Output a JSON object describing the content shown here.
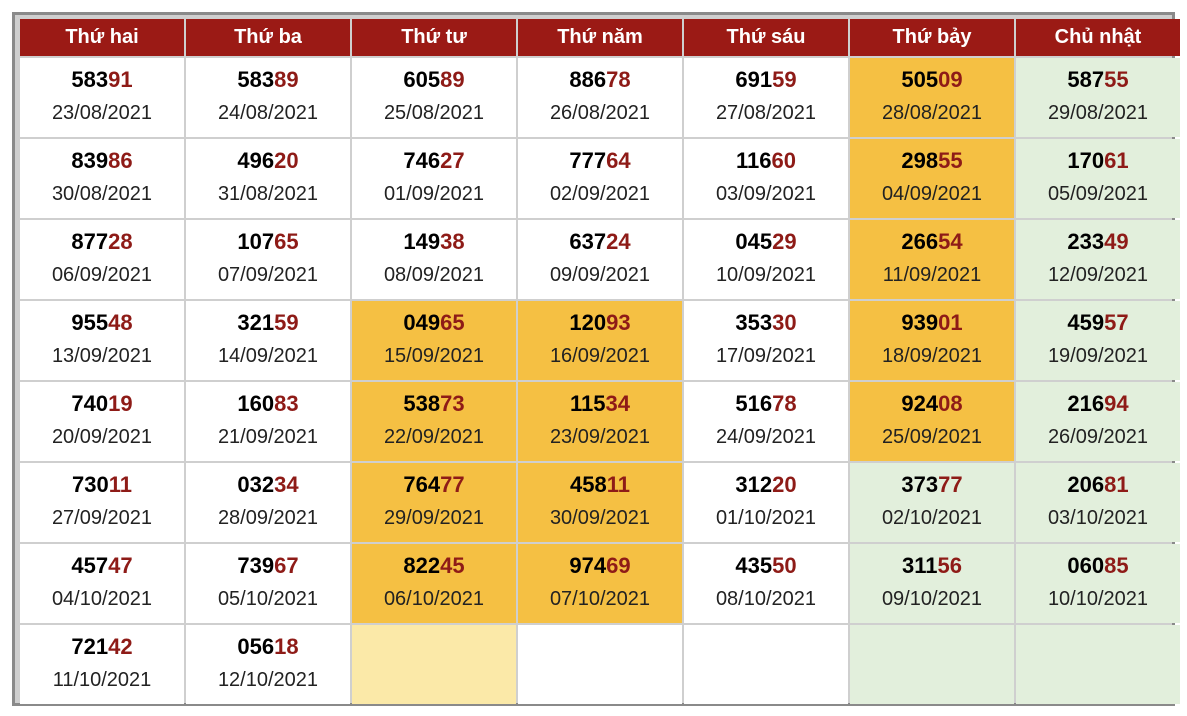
{
  "headers": [
    "Thứ hai",
    "Thứ ba",
    "Thứ tư",
    "Thứ năm",
    "Thứ sáu",
    "Thứ bảy",
    "Chủ nhật"
  ],
  "highlight_colors": {
    "header": "#9b1a15",
    "last_two_digits": "#8e1b17",
    "yellow": "#f5c043",
    "green": "#e2efdc",
    "pale_yellow": "#fbe9a8"
  },
  "rows": [
    [
      {
        "head": "583",
        "tail": "91",
        "date": "23/08/2021",
        "bg": ""
      },
      {
        "head": "583",
        "tail": "89",
        "date": "24/08/2021",
        "bg": ""
      },
      {
        "head": "605",
        "tail": "89",
        "date": "25/08/2021",
        "bg": ""
      },
      {
        "head": "886",
        "tail": "78",
        "date": "26/08/2021",
        "bg": ""
      },
      {
        "head": "691",
        "tail": "59",
        "date": "27/08/2021",
        "bg": ""
      },
      {
        "head": "505",
        "tail": "09",
        "date": "28/08/2021",
        "bg": "yellow"
      },
      {
        "head": "587",
        "tail": "55",
        "date": "29/08/2021",
        "bg": "green"
      }
    ],
    [
      {
        "head": "839",
        "tail": "86",
        "date": "30/08/2021",
        "bg": ""
      },
      {
        "head": "496",
        "tail": "20",
        "date": "31/08/2021",
        "bg": ""
      },
      {
        "head": "746",
        "tail": "27",
        "date": "01/09/2021",
        "bg": ""
      },
      {
        "head": "777",
        "tail": "64",
        "date": "02/09/2021",
        "bg": ""
      },
      {
        "head": "116",
        "tail": "60",
        "date": "03/09/2021",
        "bg": ""
      },
      {
        "head": "298",
        "tail": "55",
        "date": "04/09/2021",
        "bg": "yellow"
      },
      {
        "head": "170",
        "tail": "61",
        "date": "05/09/2021",
        "bg": "green"
      }
    ],
    [
      {
        "head": "877",
        "tail": "28",
        "date": "06/09/2021",
        "bg": ""
      },
      {
        "head": "107",
        "tail": "65",
        "date": "07/09/2021",
        "bg": ""
      },
      {
        "head": "149",
        "tail": "38",
        "date": "08/09/2021",
        "bg": ""
      },
      {
        "head": "637",
        "tail": "24",
        "date": "09/09/2021",
        "bg": ""
      },
      {
        "head": "045",
        "tail": "29",
        "date": "10/09/2021",
        "bg": ""
      },
      {
        "head": "266",
        "tail": "54",
        "date": "11/09/2021",
        "bg": "yellow"
      },
      {
        "head": "233",
        "tail": "49",
        "date": "12/09/2021",
        "bg": "green"
      }
    ],
    [
      {
        "head": "955",
        "tail": "48",
        "date": "13/09/2021",
        "bg": ""
      },
      {
        "head": "321",
        "tail": "59",
        "date": "14/09/2021",
        "bg": ""
      },
      {
        "head": "049",
        "tail": "65",
        "date": "15/09/2021",
        "bg": "yellow"
      },
      {
        "head": "120",
        "tail": "93",
        "date": "16/09/2021",
        "bg": "yellow"
      },
      {
        "head": "353",
        "tail": "30",
        "date": "17/09/2021",
        "bg": ""
      },
      {
        "head": "939",
        "tail": "01",
        "date": "18/09/2021",
        "bg": "yellow"
      },
      {
        "head": "459",
        "tail": "57",
        "date": "19/09/2021",
        "bg": "green"
      }
    ],
    [
      {
        "head": "740",
        "tail": "19",
        "date": "20/09/2021",
        "bg": ""
      },
      {
        "head": "160",
        "tail": "83",
        "date": "21/09/2021",
        "bg": ""
      },
      {
        "head": "538",
        "tail": "73",
        "date": "22/09/2021",
        "bg": "yellow"
      },
      {
        "head": "115",
        "tail": "34",
        "date": "23/09/2021",
        "bg": "yellow"
      },
      {
        "head": "516",
        "tail": "78",
        "date": "24/09/2021",
        "bg": ""
      },
      {
        "head": "924",
        "tail": "08",
        "date": "25/09/2021",
        "bg": "yellow"
      },
      {
        "head": "216",
        "tail": "94",
        "date": "26/09/2021",
        "bg": "green"
      }
    ],
    [
      {
        "head": "730",
        "tail": "11",
        "date": "27/09/2021",
        "bg": ""
      },
      {
        "head": "032",
        "tail": "34",
        "date": "28/09/2021",
        "bg": ""
      },
      {
        "head": "764",
        "tail": "77",
        "date": "29/09/2021",
        "bg": "yellow"
      },
      {
        "head": "458",
        "tail": "11",
        "date": "30/09/2021",
        "bg": "yellow"
      },
      {
        "head": "312",
        "tail": "20",
        "date": "01/10/2021",
        "bg": ""
      },
      {
        "head": "373",
        "tail": "77",
        "date": "02/10/2021",
        "bg": "green"
      },
      {
        "head": "206",
        "tail": "81",
        "date": "03/10/2021",
        "bg": "green"
      }
    ],
    [
      {
        "head": "457",
        "tail": "47",
        "date": "04/10/2021",
        "bg": ""
      },
      {
        "head": "739",
        "tail": "67",
        "date": "05/10/2021",
        "bg": ""
      },
      {
        "head": "822",
        "tail": "45",
        "date": "06/10/2021",
        "bg": "yellow"
      },
      {
        "head": "974",
        "tail": "69",
        "date": "07/10/2021",
        "bg": "yellow"
      },
      {
        "head": "435",
        "tail": "50",
        "date": "08/10/2021",
        "bg": ""
      },
      {
        "head": "311",
        "tail": "56",
        "date": "09/10/2021",
        "bg": "green"
      },
      {
        "head": "060",
        "tail": "85",
        "date": "10/10/2021",
        "bg": "green"
      }
    ],
    [
      {
        "head": "721",
        "tail": "42",
        "date": "11/10/2021",
        "bg": ""
      },
      {
        "head": "056",
        "tail": "18",
        "date": "12/10/2021",
        "bg": ""
      },
      {
        "head": "",
        "tail": "",
        "date": "",
        "bg": "pale"
      },
      {
        "head": "",
        "tail": "",
        "date": "",
        "bg": ""
      },
      {
        "head": "",
        "tail": "",
        "date": "",
        "bg": ""
      },
      {
        "head": "",
        "tail": "",
        "date": "",
        "bg": "green"
      },
      {
        "head": "",
        "tail": "",
        "date": "",
        "bg": "green"
      }
    ]
  ]
}
